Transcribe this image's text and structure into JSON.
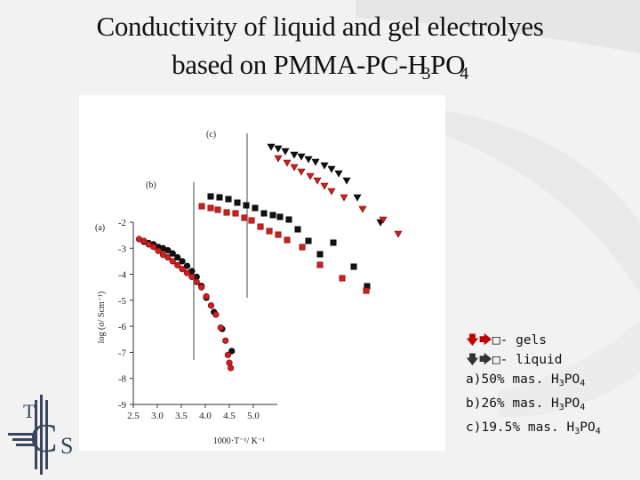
{
  "slide": {
    "title_line1": "Conductivity of liquid and gel electrolyes",
    "title_line2_pre": "based on PMMA-PC-H",
    "title_line2_sub": "3",
    "title_line2_post": "PO",
    "title_line2_sub2": "4"
  },
  "legend": {
    "gels_symbol": "🡇🡆",
    "gels_box": "□",
    "gels_text": "- gels",
    "liquid_symbol": "🡇🡆",
    "liquid_box": "□",
    "liquid_text": "- liquid",
    "entries": [
      {
        "prefix": "a)50% mas. H",
        "sub": "3",
        "mid": "PO",
        "sub2": "4"
      },
      {
        "prefix": "b)26% mas. H",
        "sub": "3",
        "mid": "PO",
        "sub2": "4"
      },
      {
        "prefix": "c)19.5% mas. H",
        "sub": "3",
        "mid": "PO",
        "sub2": "4"
      }
    ]
  },
  "logo": {
    "letters": [
      "T",
      "C",
      "S"
    ]
  },
  "colors": {
    "liquid": "#111111",
    "gel": "#cc1f1f",
    "gel_edge": "#7a0000"
  },
  "chart_data": {
    "type": "scatter",
    "xlabel": "1000·T⁻¹/ K⁻¹",
    "ylabel": "log (σ/ Scm⁻¹)",
    "xlim": [
      2.5,
      5.5
    ],
    "ylim": [
      -9,
      -2
    ],
    "xticks": [
      "2.5",
      "3.0",
      "3.5",
      "4.0",
      "4.5",
      "5.0"
    ],
    "yticks": [
      "-2",
      "-3",
      "-4",
      "-5",
      "-6",
      "-7",
      "-8",
      "-9"
    ],
    "panel_labels": [
      "(a)",
      "(b)",
      "(c)"
    ],
    "series": [
      {
        "name": "a) liquid",
        "marker": "circle",
        "color": "#111111",
        "x": [
          2.72,
          2.82,
          2.92,
          3.02,
          3.12,
          3.22,
          3.32,
          3.42,
          3.52,
          3.62,
          3.72,
          3.82,
          3.92,
          4.02,
          4.18,
          4.35,
          4.55
        ],
        "y": [
          -2.75,
          -2.8,
          -2.85,
          -2.95,
          -3.0,
          -3.08,
          -3.2,
          -3.35,
          -3.5,
          -3.68,
          -3.88,
          -4.1,
          -4.45,
          -4.9,
          -5.45,
          -6.1,
          -6.95
        ]
      },
      {
        "name": "a) gel",
        "marker": "circle",
        "color": "#cc1f1f",
        "x": [
          2.62,
          2.72,
          2.82,
          2.92,
          3.02,
          3.12,
          3.22,
          3.32,
          3.42,
          3.52,
          3.62,
          3.72,
          3.82,
          3.92,
          4.02,
          4.12,
          4.22,
          4.32,
          4.42,
          4.47,
          4.5,
          4.53
        ],
        "y": [
          -2.65,
          -2.72,
          -2.85,
          -2.95,
          -3.1,
          -3.25,
          -3.35,
          -3.5,
          -3.65,
          -3.8,
          -3.95,
          -4.1,
          -4.3,
          -4.5,
          -4.85,
          -5.2,
          -5.55,
          -6.05,
          -6.55,
          -7.1,
          -7.4,
          -7.6
        ]
      }
    ],
    "offset_series": [
      {
        "name": "b) liquid",
        "marker": "square",
        "color": "#111111",
        "points": [
          [
            237,
            221
          ],
          [
            247,
            222
          ],
          [
            257,
            224
          ],
          [
            267,
            228
          ],
          [
            277,
            231
          ],
          [
            287,
            234
          ],
          [
            297,
            240
          ],
          [
            307,
            242
          ],
          [
            315,
            244
          ],
          [
            325,
            247
          ],
          [
            335,
            258
          ],
          [
            347,
            271
          ],
          [
            360,
            286
          ],
          [
            375,
            273
          ],
          [
            398,
            300
          ],
          [
            413,
            322
          ]
        ]
      },
      {
        "name": "b) gel",
        "marker": "square",
        "color": "#cc1f1f",
        "points": [
          [
            227,
            232
          ],
          [
            237,
            234
          ],
          [
            245,
            236
          ],
          [
            255,
            239
          ],
          [
            265,
            240
          ],
          [
            275,
            245
          ],
          [
            283,
            248
          ],
          [
            293,
            255
          ],
          [
            303,
            260
          ],
          [
            313,
            264
          ],
          [
            323,
            270
          ],
          [
            340,
            278
          ],
          [
            360,
            298
          ],
          [
            385,
            313
          ],
          [
            412,
            327
          ]
        ]
      },
      {
        "name": "c) liquid",
        "marker": "triangle-down",
        "color": "#111111",
        "points": [
          [
            305,
            165
          ],
          [
            313,
            167
          ],
          [
            321,
            170
          ],
          [
            331,
            174
          ],
          [
            339,
            176
          ],
          [
            347,
            179
          ],
          [
            355,
            182
          ],
          [
            365,
            186
          ],
          [
            373,
            190
          ],
          [
            381,
            195
          ],
          [
            390,
            203
          ],
          [
            402,
            222
          ],
          [
            428,
            250
          ]
        ]
      },
      {
        "name": "c) gel",
        "marker": "triangle-down",
        "color": "#cc1f1f",
        "points": [
          [
            313,
            178
          ],
          [
            323,
            183
          ],
          [
            331,
            188
          ],
          [
            339,
            193
          ],
          [
            349,
            198
          ],
          [
            357,
            203
          ],
          [
            365,
            209
          ],
          [
            373,
            215
          ],
          [
            387,
            222
          ],
          [
            408,
            235
          ],
          [
            431,
            247
          ],
          [
            448,
            263
          ]
        ]
      }
    ]
  }
}
